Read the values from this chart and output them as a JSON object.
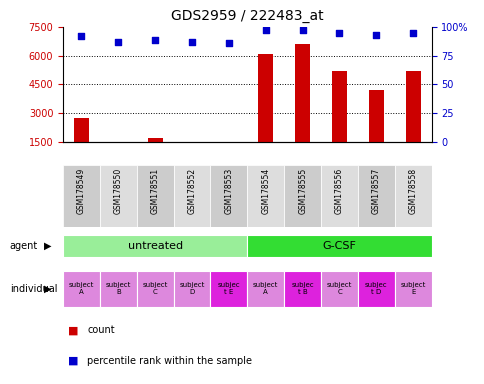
{
  "title": "GDS2959 / 222483_at",
  "samples": [
    "GSM178549",
    "GSM178550",
    "GSM178551",
    "GSM178552",
    "GSM178553",
    "GSM178554",
    "GSM178555",
    "GSM178556",
    "GSM178557",
    "GSM178558"
  ],
  "counts": [
    2750,
    1430,
    1700,
    1370,
    1360,
    6100,
    6600,
    5200,
    4200,
    5200
  ],
  "percentile_ranks": [
    92,
    87,
    89,
    87,
    86,
    97,
    97,
    95,
    93,
    95
  ],
  "ylim_left": [
    1500,
    7500
  ],
  "yticks_left": [
    1500,
    3000,
    4500,
    6000,
    7500
  ],
  "ylim_right": [
    0,
    100
  ],
  "yticks_right": [
    0,
    25,
    50,
    75,
    100
  ],
  "bar_color": "#cc0000",
  "scatter_color": "#0000cc",
  "agent_groups": [
    {
      "label": "untreated",
      "start": 0,
      "end": 5,
      "color": "#99ee99"
    },
    {
      "label": "G-CSF",
      "start": 5,
      "end": 10,
      "color": "#33dd33"
    }
  ],
  "individual_labels": [
    "subject\nA",
    "subject\nB",
    "subject\nC",
    "subject\nD",
    "subjec\nt E",
    "subject\nA",
    "subjec\nt B",
    "subject\nC",
    "subjec\nt D",
    "subject\nE"
  ],
  "individual_colors": [
    "#dd88dd",
    "#dd88dd",
    "#dd88dd",
    "#dd88dd",
    "#dd22dd",
    "#dd88dd",
    "#dd22dd",
    "#dd88dd",
    "#dd22dd",
    "#dd88dd"
  ],
  "sample_bg_colors": [
    "#cccccc",
    "#dddddd",
    "#cccccc",
    "#dddddd",
    "#cccccc",
    "#dddddd",
    "#cccccc",
    "#dddddd",
    "#cccccc",
    "#dddddd"
  ],
  "grid_yticks": [
    3000,
    4500,
    6000
  ],
  "background_color": "#ffffff"
}
